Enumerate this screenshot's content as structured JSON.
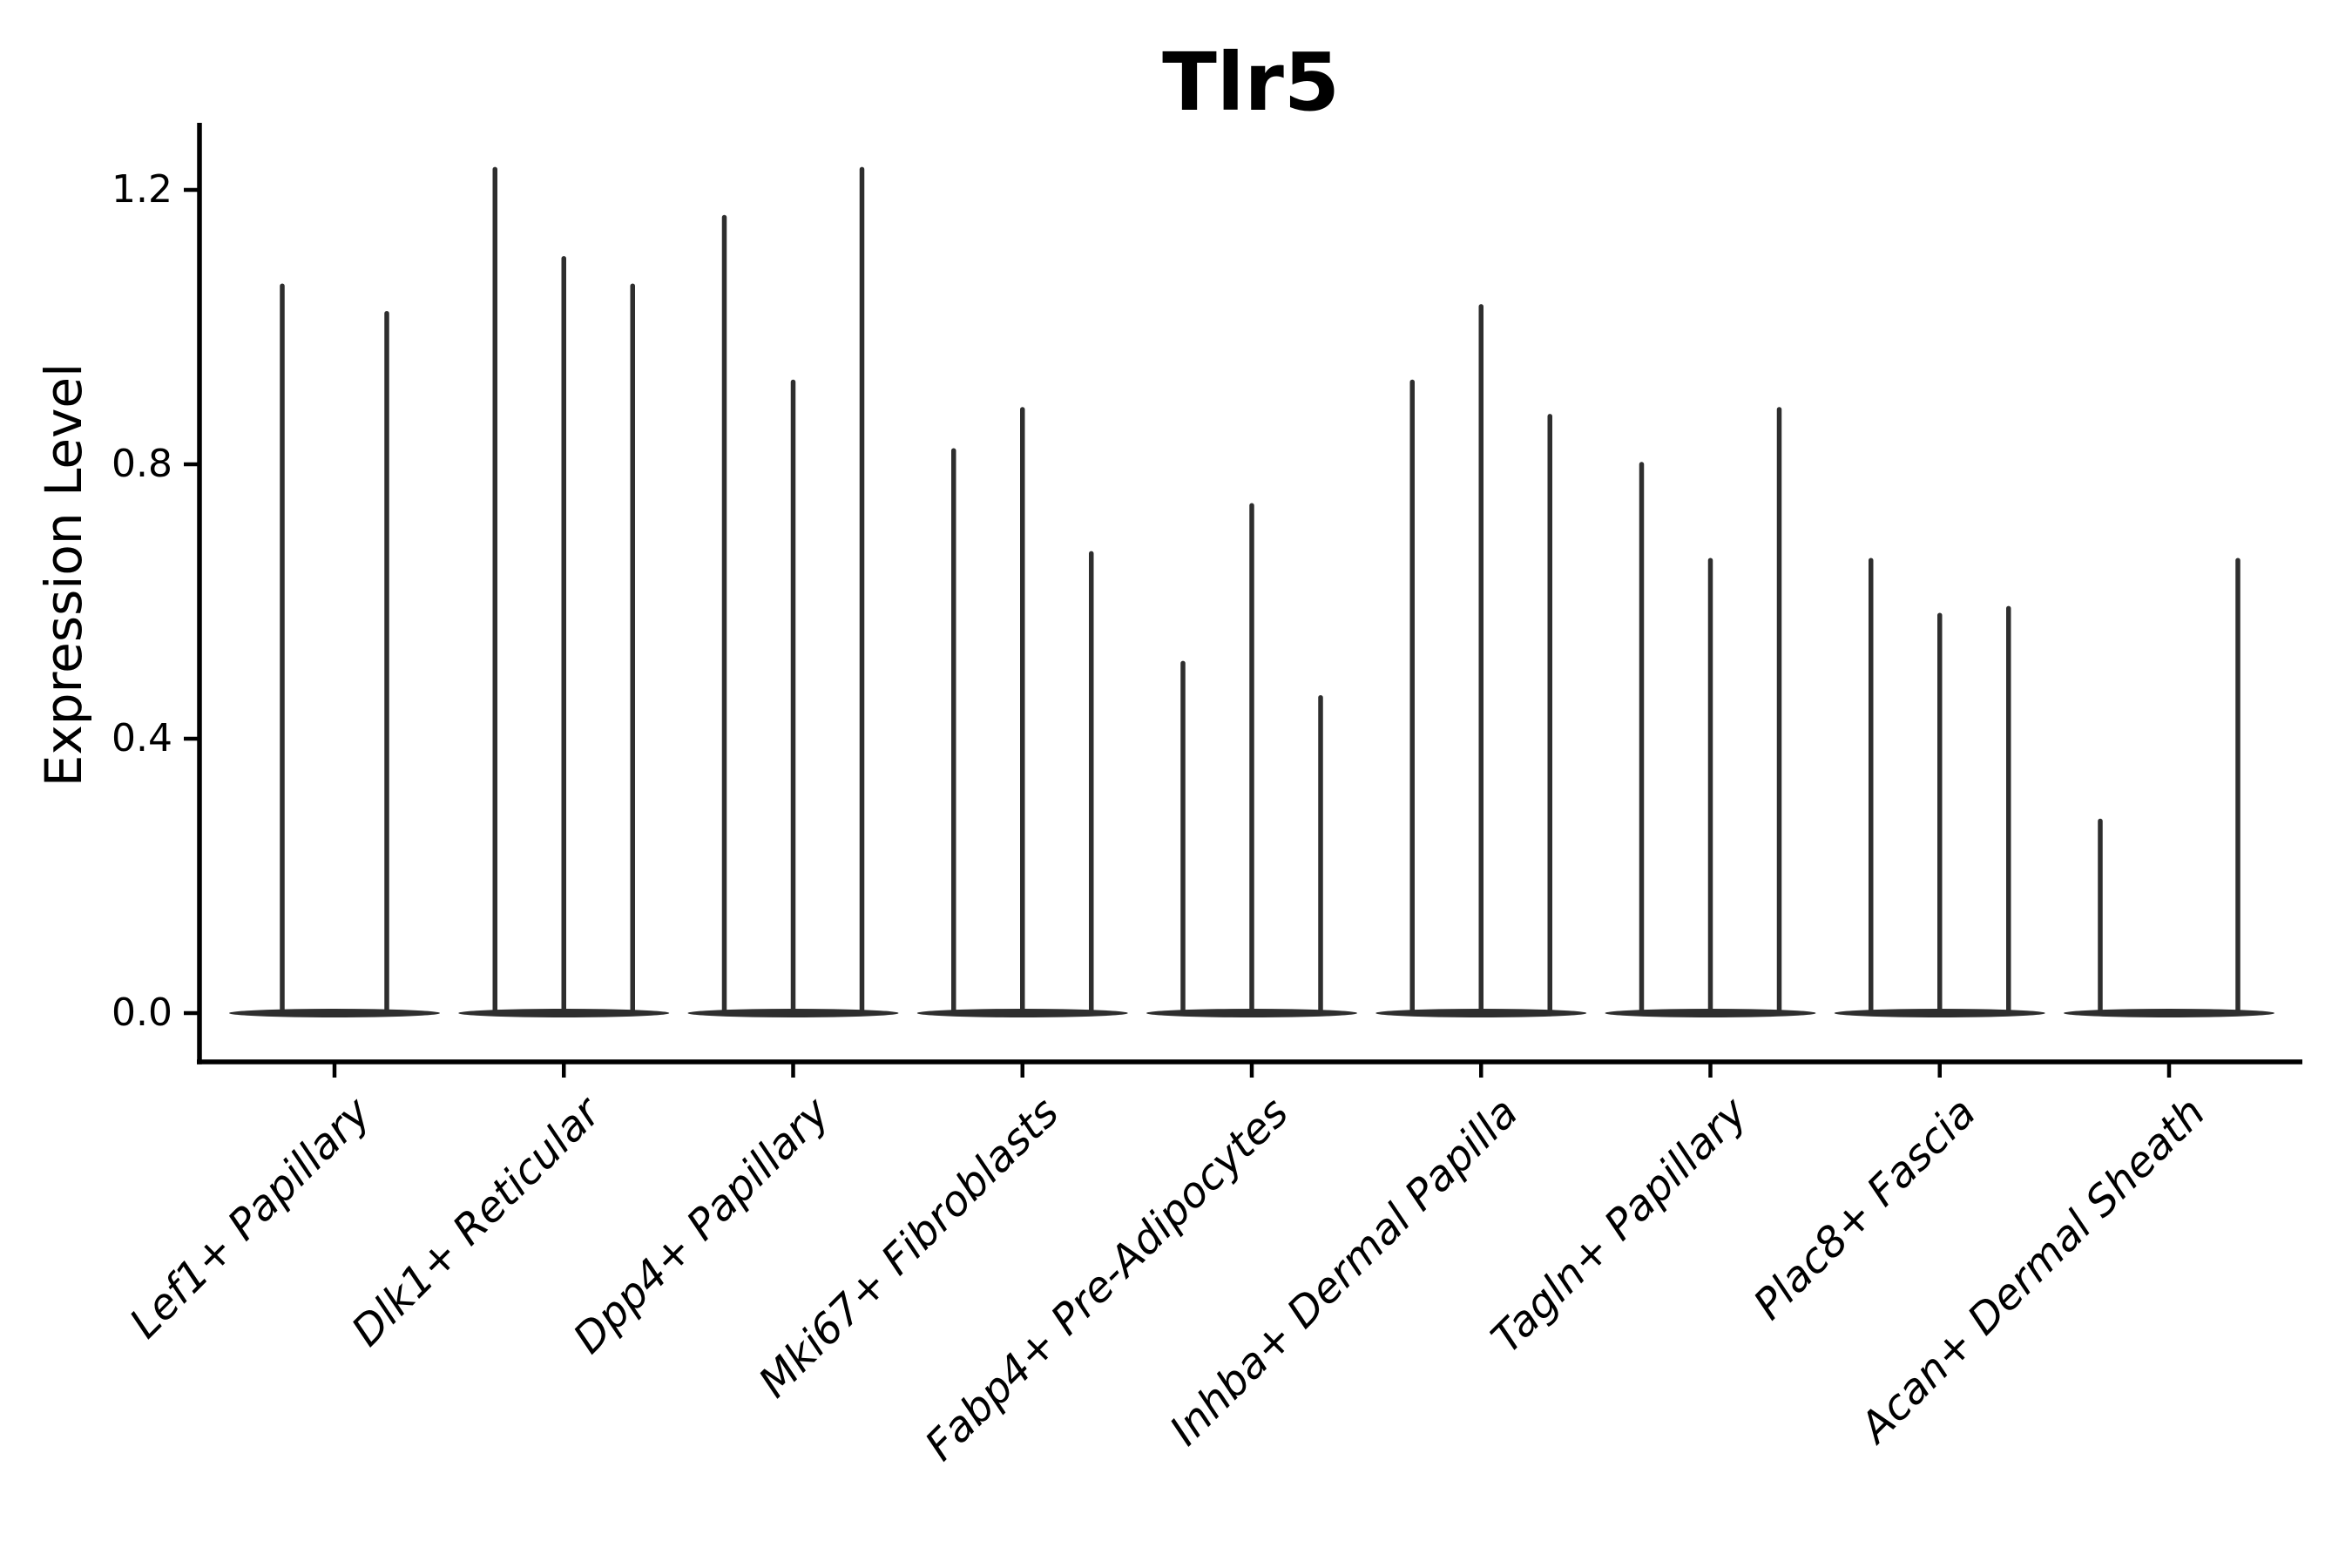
{
  "chart_data": {
    "type": "violin",
    "title": "Tlr5",
    "xlabel": "",
    "ylabel": "Expression Level",
    "ytick_labels": [
      "0.0",
      "0.4",
      "0.8",
      "1.2"
    ],
    "ytick_values": [
      0.0,
      0.4,
      0.8,
      1.2
    ],
    "ylim": [
      -0.07,
      1.3
    ],
    "grid": false,
    "legend_position": "none",
    "colors": {
      "violin_line": "#2e2e2e",
      "axis": "#000000",
      "text": "#000000",
      "background": "#ffffff"
    },
    "groups": [
      {
        "label": "Lef1+ Papillary",
        "violins": [
          {
            "pos": -60,
            "max": 1.06
          },
          {
            "pos": 60,
            "max": 1.02
          }
        ]
      },
      {
        "label": "Dlk1+ Reticular",
        "violins": [
          {
            "pos": -79,
            "max": 1.23
          },
          {
            "pos": 0,
            "max": 1.1
          },
          {
            "pos": 79,
            "max": 1.06
          }
        ]
      },
      {
        "label": "Dpp4+ Papillary",
        "violins": [
          {
            "pos": -79,
            "max": 1.16
          },
          {
            "pos": 0,
            "max": 0.92
          },
          {
            "pos": 79,
            "max": 1.23
          }
        ]
      },
      {
        "label": "Mki67+ Fibroblasts",
        "violins": [
          {
            "pos": -79,
            "max": 0.82
          },
          {
            "pos": 0,
            "max": 0.88
          },
          {
            "pos": 79,
            "max": 0.67
          }
        ]
      },
      {
        "label": "Fabp4+ Pre-Adipocytes",
        "violins": [
          {
            "pos": -79,
            "max": 0.51
          },
          {
            "pos": 0,
            "max": 0.74
          },
          {
            "pos": 79,
            "max": 0.46
          }
        ]
      },
      {
        "label": "Inhba+ Dermal Papilla",
        "violins": [
          {
            "pos": -79,
            "max": 0.92
          },
          {
            "pos": 0,
            "max": 1.03
          },
          {
            "pos": 79,
            "max": 0.87
          }
        ]
      },
      {
        "label": "Tagln+ Papillary",
        "violins": [
          {
            "pos": -79,
            "max": 0.8
          },
          {
            "pos": 0,
            "max": 0.66
          },
          {
            "pos": 79,
            "max": 0.88
          }
        ]
      },
      {
        "label": "Plac8+ Fascia",
        "violins": [
          {
            "pos": -79,
            "max": 0.66
          },
          {
            "pos": 0,
            "max": 0.58
          },
          {
            "pos": 79,
            "max": 0.59
          }
        ]
      },
      {
        "label": "Acan+ Dermal Sheath",
        "violins": [
          {
            "pos": -79,
            "max": 0.28
          },
          {
            "pos": 79,
            "max": 0.66
          }
        ]
      }
    ]
  }
}
